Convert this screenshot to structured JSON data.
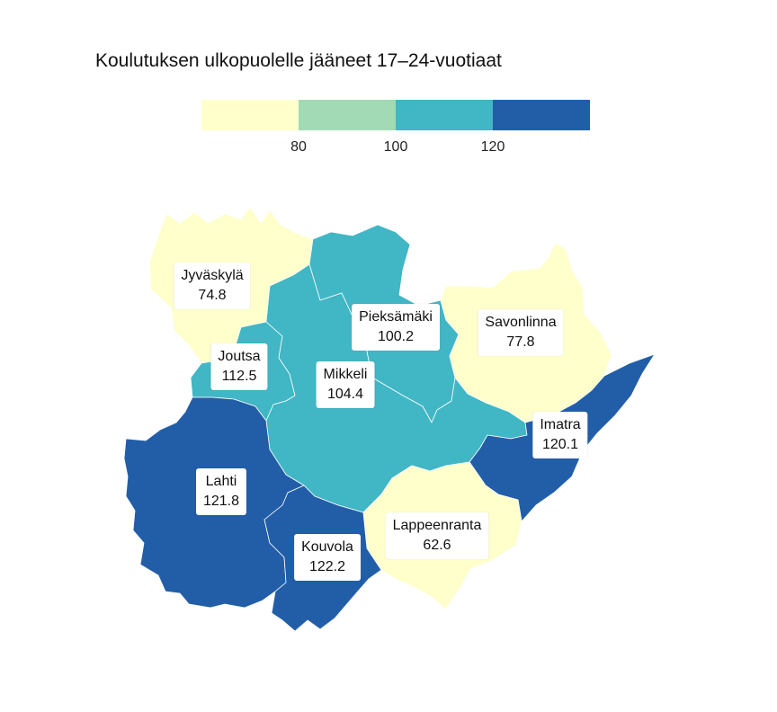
{
  "title": "Koulutuksen ulkopuolelle jääneet 17–24-vuotiaat",
  "legend": {
    "colors": [
      "#ffffcc",
      "#a1dab4",
      "#41b6c4",
      "#225ea8"
    ],
    "ticks": [
      "80",
      "100",
      "120"
    ]
  },
  "regions": [
    {
      "name": "Jyväskylä",
      "value": "74.8"
    },
    {
      "name": "Pieksämäki",
      "value": "100.2"
    },
    {
      "name": "Savonlinna",
      "value": "77.8"
    },
    {
      "name": "Joutsa",
      "value": "112.5"
    },
    {
      "name": "Mikkeli",
      "value": "104.4"
    },
    {
      "name": "Imatra",
      "value": "120.1"
    },
    {
      "name": "Lahti",
      "value": "121.8"
    },
    {
      "name": "Lappeenranta",
      "value": "62.6"
    },
    {
      "name": "Kouvola",
      "value": "122.2"
    }
  ]
}
